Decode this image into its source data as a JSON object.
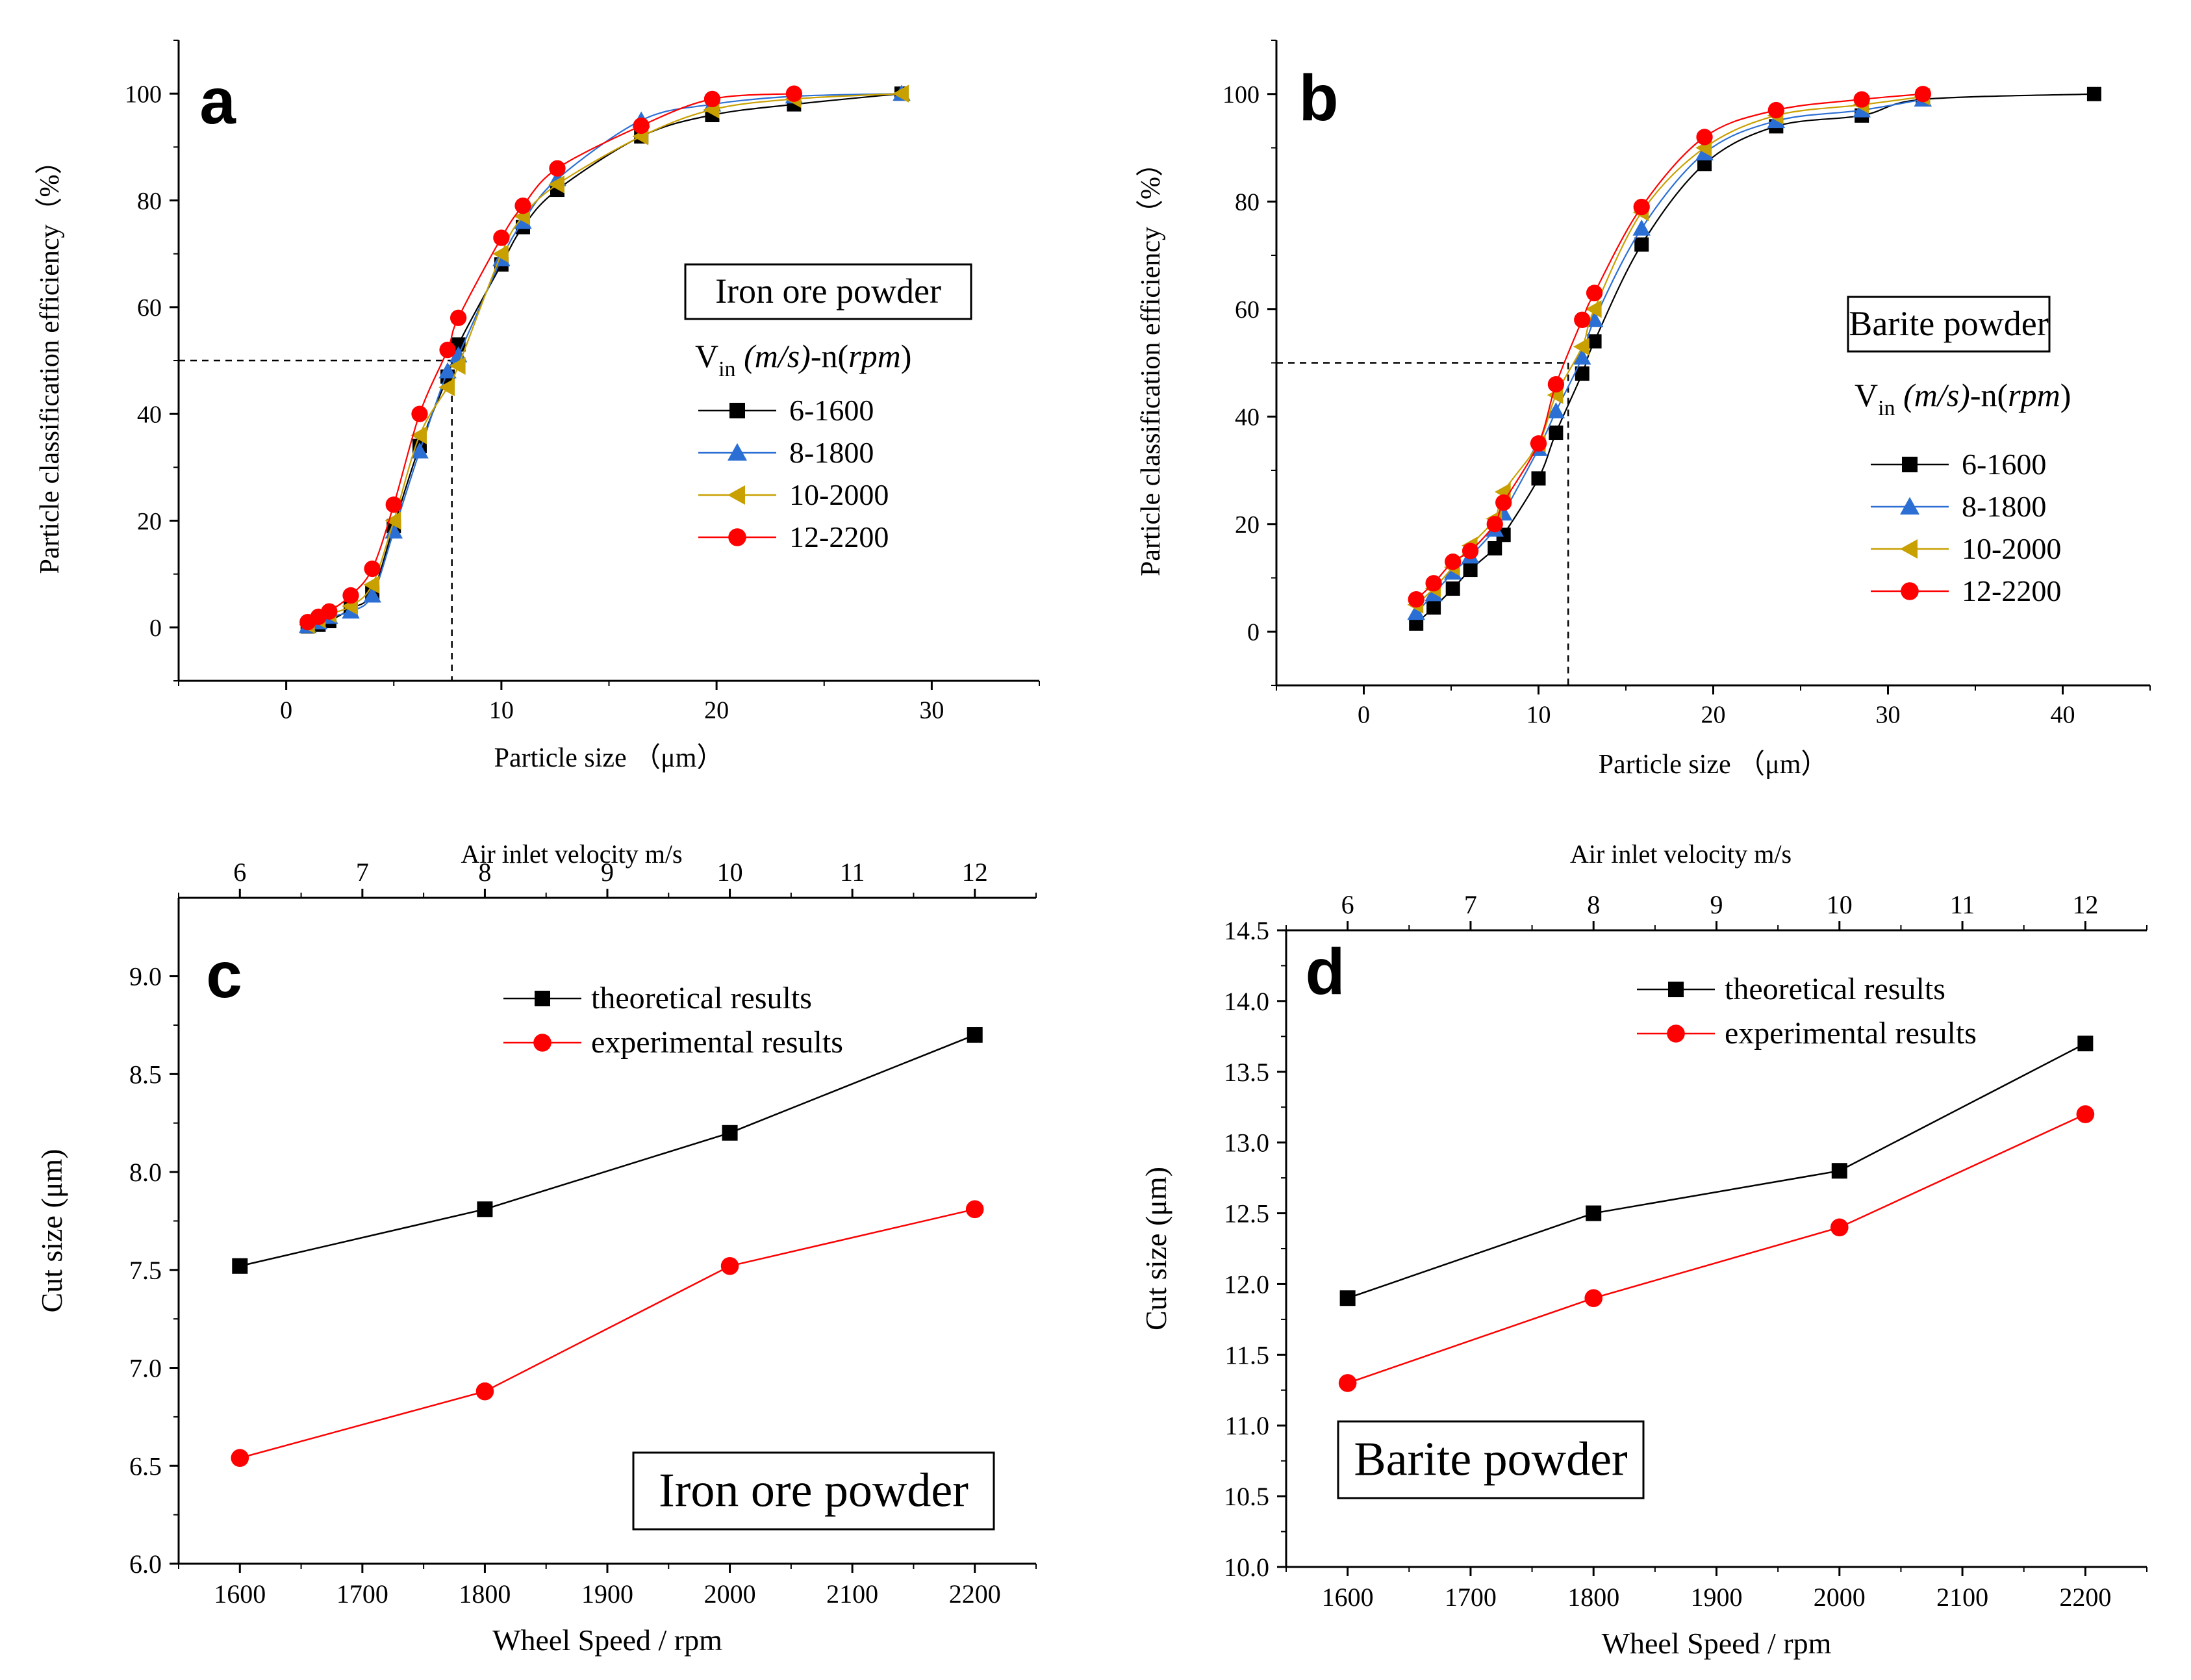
{
  "chart_data": [
    {
      "panel": "a",
      "type": "line",
      "panel_letter": "a",
      "box_label": "Iron ore powder",
      "legend_title_prefix": "V",
      "legend_title_sub": "in",
      "legend_title_unit1": "(m/s)",
      "legend_title_mid": "-n(",
      "legend_title_unit2": "rpm",
      "legend_title_end": ")",
      "xlabel": "Particle size （μm）",
      "ylabel": "Particle classification efficiency（%）",
      "xlim": [
        -5,
        35
      ],
      "ylim": [
        -10,
        110
      ],
      "xticks": [
        "0",
        "10",
        "20",
        "30"
      ],
      "xtick_values": [
        0,
        10,
        20,
        30
      ],
      "yticks": [
        "0",
        "20",
        "40",
        "60",
        "80",
        "100"
      ],
      "ytick_values": [
        0,
        20,
        40,
        60,
        80,
        100
      ],
      "cut_size_marker": {
        "x": 7.7,
        "y": 50
      },
      "series": [
        {
          "name": "6-1600",
          "color": "#000000",
          "marker": "square",
          "x": [
            1.0,
            1.5,
            2.0,
            3.0,
            4.0,
            5.0,
            6.2,
            7.5,
            8.0,
            10.0,
            11.0,
            12.6,
            16.5,
            19.8,
            23.6,
            28.6
          ],
          "y": [
            0.2,
            0.5,
            1.2,
            3.5,
            6.5,
            19.0,
            34.0,
            47.0,
            53.0,
            68.0,
            75.0,
            82.0,
            92.0,
            96.0,
            98.0,
            100.0
          ]
        },
        {
          "name": "8-1800",
          "color": "#2b6fd4",
          "marker": "triangle-up",
          "x": [
            1.0,
            1.5,
            2.0,
            3.0,
            4.0,
            5.0,
            6.2,
            7.5,
            8.0,
            10.0,
            11.0,
            12.6,
            16.5,
            19.8,
            23.6,
            28.6
          ],
          "y": [
            0.3,
            1.0,
            2.0,
            3.0,
            6.0,
            18.0,
            33.0,
            48.0,
            51.0,
            69.0,
            76.0,
            84.0,
            95.0,
            98.0,
            99.5,
            100.0
          ]
        },
        {
          "name": "10-2000",
          "color": "#c8a000",
          "marker": "triangle-left",
          "x": [
            1.0,
            1.5,
            2.0,
            3.0,
            4.0,
            5.0,
            6.2,
            7.5,
            8.0,
            10.0,
            11.0,
            12.6,
            16.5,
            19.8,
            23.6,
            28.6
          ],
          "y": [
            0.5,
            1.5,
            2.5,
            4.0,
            8.0,
            20.0,
            36.0,
            45.0,
            49.0,
            70.0,
            77.0,
            83.0,
            92.0,
            97.0,
            99.0,
            100.0
          ]
        },
        {
          "name": "12-2200",
          "color": "#ff0000",
          "marker": "circle",
          "x": [
            1.0,
            1.5,
            2.0,
            3.0,
            4.0,
            5.0,
            6.2,
            7.5,
            8.0,
            10.0,
            11.0,
            12.6,
            16.5,
            19.8,
            23.6
          ],
          "y": [
            1.0,
            2.0,
            3.0,
            6.0,
            11.0,
            23.0,
            40.0,
            52.0,
            58.0,
            73.0,
            79.0,
            86.0,
            94.0,
            99.0,
            100.0
          ]
        }
      ]
    },
    {
      "panel": "b",
      "type": "line",
      "panel_letter": "b",
      "box_label": "Barite powder",
      "legend_title_prefix": "V",
      "legend_title_sub": "in",
      "legend_title_unit1": "(m/s)",
      "legend_title_mid": "-n(",
      "legend_title_unit2": "rpm",
      "legend_title_end": ")",
      "xlabel": "Particle size （μm）",
      "ylabel": "Particle classification efficiency（%）",
      "xlim": [
        -5,
        45
      ],
      "ylim": [
        -10,
        110
      ],
      "xticks": [
        "0",
        "10",
        "20",
        "30",
        "40"
      ],
      "xtick_values": [
        0,
        10,
        20,
        30,
        40
      ],
      "yticks": [
        "0",
        "20",
        "40",
        "60",
        "80",
        "100"
      ],
      "ytick_values": [
        0,
        20,
        40,
        60,
        80,
        100
      ],
      "cut_size_marker": {
        "x": 11.7,
        "y": 50
      },
      "series": [
        {
          "name": "6-1600",
          "color": "#000000",
          "marker": "square",
          "x": [
            3.0,
            4.0,
            5.1,
            6.1,
            7.5,
            8.0,
            10.0,
            11.0,
            12.5,
            13.2,
            15.9,
            19.5,
            23.6,
            28.5,
            32.0,
            41.8
          ],
          "y": [
            1.5,
            4.5,
            8.0,
            11.5,
            15.5,
            18.0,
            28.5,
            37.0,
            48.0,
            54.0,
            72.0,
            87.0,
            94.0,
            96.0,
            99.0,
            100.0
          ]
        },
        {
          "name": "8-1800",
          "color": "#2b6fd4",
          "marker": "triangle-up",
          "x": [
            3.0,
            4.0,
            5.1,
            6.1,
            7.5,
            8.0,
            10.0,
            11.0,
            12.5,
            13.2,
            15.9,
            19.5,
            23.6,
            28.5,
            32.0
          ],
          "y": [
            3.5,
            7.0,
            11.0,
            14.0,
            19.0,
            22.0,
            34.0,
            41.0,
            51.0,
            58.0,
            75.0,
            89.0,
            95.0,
            97.0,
            99.0
          ]
        },
        {
          "name": "10-2000",
          "color": "#c8a000",
          "marker": "triangle-left",
          "x": [
            3.0,
            4.0,
            5.1,
            6.1,
            7.5,
            8.0,
            10.0,
            11.0,
            12.5,
            13.2,
            15.9,
            19.5,
            23.6,
            28.5,
            32.0
          ],
          "y": [
            5.0,
            8.0,
            12.0,
            16.0,
            21.0,
            26.0,
            35.0,
            44.0,
            53.0,
            60.0,
            78.0,
            90.0,
            96.0,
            98.0,
            99.5
          ]
        },
        {
          "name": "12-2200",
          "color": "#ff0000",
          "marker": "circle",
          "x": [
            3.0,
            4.0,
            5.1,
            6.1,
            7.5,
            8.0,
            10.0,
            11.0,
            12.5,
            13.2,
            15.9,
            19.5,
            23.6,
            28.5,
            32.0
          ],
          "y": [
            6.0,
            9.0,
            13.0,
            15.0,
            20.0,
            24.0,
            35.0,
            46.0,
            58.0,
            63.0,
            79.0,
            92.0,
            97.0,
            99.0,
            100.0
          ]
        }
      ]
    },
    {
      "panel": "c",
      "type": "line",
      "panel_letter": "c",
      "box_label": "Iron ore powder",
      "xlabel": "Wheel Speed / rpm",
      "x2label": "Air inlet velocity  m/s",
      "ylabel": "Cut size (μm)",
      "xlim": [
        1550,
        2250
      ],
      "ylim": [
        6.0,
        9.4
      ],
      "xticks": [
        "1600",
        "1700",
        "1800",
        "1900",
        "2000",
        "2100",
        "2200"
      ],
      "xtick_values": [
        1600,
        1700,
        1800,
        1900,
        2000,
        2100,
        2200
      ],
      "x2ticks": [
        "6",
        "7",
        "8",
        "9",
        "10",
        "11",
        "12"
      ],
      "x2tick_values": [
        1600,
        1700,
        1800,
        1900,
        2000,
        2100,
        2200
      ],
      "yticks": [
        "6.0",
        "6.5",
        "7.0",
        "7.5",
        "8.0",
        "8.5",
        "9.0"
      ],
      "ytick_values": [
        6.0,
        6.5,
        7.0,
        7.5,
        8.0,
        8.5,
        9.0
      ],
      "series": [
        {
          "name": "theoretical results",
          "color": "#000000",
          "marker": "square",
          "x": [
            1600,
            1800,
            2000,
            2200
          ],
          "y": [
            7.52,
            7.81,
            8.2,
            8.7
          ]
        },
        {
          "name": "experimental results",
          "color": "#ff0000",
          "marker": "circle",
          "x": [
            1600,
            1800,
            2000,
            2200
          ],
          "y": [
            6.54,
            6.88,
            7.52,
            7.81
          ]
        }
      ]
    },
    {
      "panel": "d",
      "type": "line",
      "panel_letter": "d",
      "box_label": "Barite powder",
      "xlabel": "Wheel Speed / rpm",
      "x2label": "Air inlet velocity  m/s",
      "ylabel": "Cut size (μm)",
      "xlim": [
        1550,
        2250
      ],
      "ylim": [
        10.0,
        14.5
      ],
      "xticks": [
        "1600",
        "1700",
        "1800",
        "1900",
        "2000",
        "2100",
        "2200"
      ],
      "xtick_values": [
        1600,
        1700,
        1800,
        1900,
        2000,
        2100,
        2200
      ],
      "x2ticks": [
        "6",
        "7",
        "8",
        "9",
        "10",
        "11",
        "12"
      ],
      "x2tick_values": [
        1600,
        1700,
        1800,
        1900,
        2000,
        2100,
        2200
      ],
      "yticks": [
        "10.0",
        "10.5",
        "11.0",
        "11.5",
        "12.0",
        "12.5",
        "13.0",
        "13.5",
        "14.0",
        "14.5"
      ],
      "ytick_values": [
        10.0,
        10.5,
        11.0,
        11.5,
        12.0,
        12.5,
        13.0,
        13.5,
        14.0,
        14.5
      ],
      "series": [
        {
          "name": "theoretical results",
          "color": "#000000",
          "marker": "square",
          "x": [
            1600,
            1800,
            2000,
            2200
          ],
          "y": [
            11.9,
            12.5,
            12.8,
            13.7
          ]
        },
        {
          "name": "experimental results",
          "color": "#ff0000",
          "marker": "circle",
          "x": [
            1600,
            1800,
            2000,
            2200
          ],
          "y": [
            11.3,
            11.9,
            12.4,
            13.2
          ]
        }
      ]
    }
  ]
}
